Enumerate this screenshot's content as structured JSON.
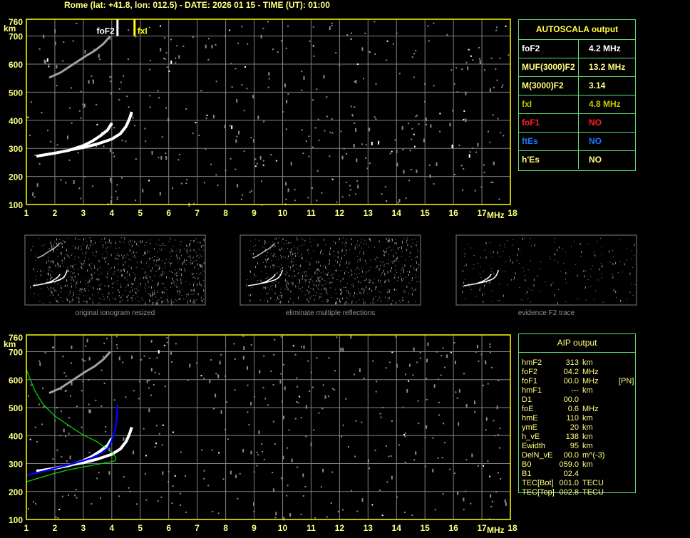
{
  "header": {
    "title": "Rome (lat: +41.8, lon: 012.5) - DATE: 2026 01 15 - TIME (UT): 01:00"
  },
  "colors": {
    "axis": "#ffff00",
    "tick_label": "#ffff80",
    "grid": "#808080",
    "trace": "#ffffff",
    "noise": "#8c8c8c",
    "aip_green": "#00e000",
    "aip_blue": "#0000ff",
    "table_border": "#5ee07a"
  },
  "chart_data": [
    {
      "type": "scatter",
      "name_ref": "autoscala-ionogram",
      "ylabel": "km",
      "xlabel": "MHz",
      "xlim": [
        1,
        18
      ],
      "ylim": [
        100,
        760
      ],
      "x_ticks": [
        "1",
        "2",
        "3",
        "4",
        "5",
        "6",
        "7",
        "8",
        "9",
        "10",
        "11",
        "12",
        "13",
        "14",
        "15",
        "16",
        "17",
        "18"
      ],
      "y_ticks": [
        "100",
        "200",
        "300",
        "400",
        "500",
        "600",
        "700",
        "760"
      ],
      "grid": true,
      "markers": [
        {
          "label": "foF2",
          "freq": 4.2,
          "color": "#ffffff"
        },
        {
          "label": "fxI",
          "freq": 4.8,
          "color": "#ffff00"
        }
      ],
      "traces": [
        {
          "kind": "o-trace",
          "points": [
            [
              1.35,
              272
            ],
            [
              1.7,
              278
            ],
            [
              2,
              283
            ],
            [
              2.5,
              293
            ],
            [
              3,
              310
            ],
            [
              3.3,
              325
            ],
            [
              3.6,
              345
            ],
            [
              3.85,
              365
            ],
            [
              4.0,
              390
            ]
          ]
        },
        {
          "kind": "x-trace",
          "points": [
            [
              2.6,
              296
            ],
            [
              3,
              303
            ],
            [
              3.5,
              316
            ],
            [
              4,
              333
            ],
            [
              4.3,
              352
            ],
            [
              4.5,
              378
            ],
            [
              4.62,
              405
            ],
            [
              4.7,
              430
            ]
          ]
        },
        {
          "kind": "second-hop",
          "points": [
            [
              1.8,
              552
            ],
            [
              2.2,
              570
            ],
            [
              2.5,
              590
            ],
            [
              2.8,
              610
            ],
            [
              3.1,
              630
            ],
            [
              3.4,
              648
            ],
            [
              3.7,
              672
            ],
            [
              3.95,
              700
            ]
          ]
        }
      ]
    },
    {
      "type": "line",
      "name_ref": "aip-ionogram",
      "ylabel": "km",
      "xlabel": "MHz",
      "xlim": [
        1,
        18
      ],
      "ylim": [
        100,
        760
      ],
      "x_ticks": [
        "1",
        "2",
        "3",
        "4",
        "5",
        "6",
        "7",
        "8",
        "9",
        "10",
        "11",
        "12",
        "13",
        "14",
        "15",
        "16",
        "17",
        "18"
      ],
      "y_ticks": [
        "100",
        "200",
        "300",
        "400",
        "500",
        "600",
        "700",
        "760"
      ],
      "grid": true,
      "traces": [
        {
          "kind": "o-trace",
          "points": [
            [
              1.35,
              272
            ],
            [
              1.7,
              278
            ],
            [
              2,
              283
            ],
            [
              2.5,
              293
            ],
            [
              3,
              310
            ],
            [
              3.3,
              325
            ],
            [
              3.6,
              345
            ],
            [
              3.85,
              365
            ],
            [
              4.0,
              390
            ]
          ]
        },
        {
          "kind": "x-trace",
          "points": [
            [
              2.6,
              296
            ],
            [
              3,
              303
            ],
            [
              3.5,
              316
            ],
            [
              4,
              333
            ],
            [
              4.3,
              352
            ],
            [
              4.5,
              378
            ],
            [
              4.62,
              405
            ],
            [
              4.7,
              430
            ]
          ]
        },
        {
          "kind": "second-hop",
          "points": [
            [
              1.8,
              552
            ],
            [
              2.2,
              570
            ],
            [
              2.5,
              590
            ],
            [
              2.8,
              610
            ],
            [
              3.1,
              630
            ],
            [
              3.4,
              648
            ],
            [
              3.7,
              672
            ],
            [
              3.95,
              700
            ]
          ]
        }
      ],
      "series": [
        {
          "color": "#00e000",
          "points": [
            [
              1,
              635
            ],
            [
              1.3,
              560
            ],
            [
              1.6,
              510
            ],
            [
              2,
              470
            ],
            [
              2.5,
              435
            ],
            [
              3,
              402
            ],
            [
              3.5,
              377
            ],
            [
              3.8,
              355
            ],
            [
              4.05,
              335
            ],
            [
              4.15,
              320
            ],
            [
              4.12,
              310
            ],
            [
              3.9,
              305
            ],
            [
              3.5,
              297
            ],
            [
              3,
              288
            ],
            [
              2.5,
              278
            ],
            [
              2,
              265
            ],
            [
              1.5,
              250
            ],
            [
              1,
              235
            ]
          ]
        },
        {
          "color": "#0000ff",
          "points": [
            [
              1,
              258
            ],
            [
              1.3,
              265
            ],
            [
              1.6,
              272
            ],
            [
              2,
              283
            ],
            [
              2.5,
              296
            ],
            [
              3,
              310
            ],
            [
              3.3,
              320
            ],
            [
              3.6,
              335
            ],
            [
              3.85,
              352
            ],
            [
              4.0,
              383
            ],
            [
              4.08,
              405
            ],
            [
              4.15,
              435
            ],
            [
              4.2,
              512
            ]
          ]
        }
      ]
    }
  ],
  "thumbnails": [
    {
      "caption": "original ionogram resized"
    },
    {
      "caption": "eliminate multiple reflections"
    },
    {
      "caption": "evidence F2 trace"
    }
  ],
  "autoscala": {
    "title": "AUTOSCALA output",
    "rows": [
      {
        "label": "foF2",
        "value": "4.2 MHz",
        "color": "#ffffff"
      },
      {
        "label": "MUF(3000)F2",
        "value": "13.2 MHz",
        "color": "#ffff80"
      },
      {
        "label": "M(3000)F2",
        "value": "3.14",
        "color": "#ffff80"
      },
      {
        "label": "fxI",
        "value": "4.8 MHz",
        "color": "#c8c800"
      },
      {
        "label": "foF1",
        "value": "NO",
        "color": "#ff2020"
      },
      {
        "label": "ftEs",
        "value": "NO",
        "color": "#1e78ff"
      },
      {
        "label": "h'Es",
        "value": "NO",
        "color": "#ffff80"
      }
    ]
  },
  "aip": {
    "title": "AIP output",
    "rows": [
      {
        "label": "hmF2",
        "value": "313",
        "unit": "km",
        "extra": ""
      },
      {
        "label": "foF2",
        "value": "04.2",
        "unit": "MHz",
        "extra": ""
      },
      {
        "label": "foF1",
        "value": "00.0",
        "unit": "MHz",
        "extra": "[PN]"
      },
      {
        "label": "hmF1",
        "value": "---",
        "unit": "km",
        "extra": ""
      },
      {
        "label": "D1",
        "value": "00.0",
        "unit": "",
        "extra": ""
      },
      {
        "label": "foE",
        "value": "0.6",
        "unit": "MHz",
        "extra": ""
      },
      {
        "label": "hmE",
        "value": "110",
        "unit": "km",
        "extra": ""
      },
      {
        "label": "ymE",
        "value": "20",
        "unit": "km",
        "extra": ""
      },
      {
        "label": "h_vE",
        "value": "138",
        "unit": "km",
        "extra": ""
      },
      {
        "label": "Ewidth",
        "value": "95",
        "unit": "km",
        "extra": ""
      },
      {
        "label": "DelN_vE",
        "value": "00.0",
        "unit": "m^(-3)",
        "extra": ""
      },
      {
        "label": "B0",
        "value": "059.0",
        "unit": "km",
        "extra": ""
      },
      {
        "label": "B1",
        "value": "02.4",
        "unit": "",
        "extra": ""
      },
      {
        "label": "TEC[Bot]",
        "value": "001.0",
        "unit": "TECU",
        "extra": ""
      },
      {
        "label": "TEC[Top]",
        "value": "002.8",
        "unit": "TECU",
        "extra": ""
      }
    ]
  }
}
